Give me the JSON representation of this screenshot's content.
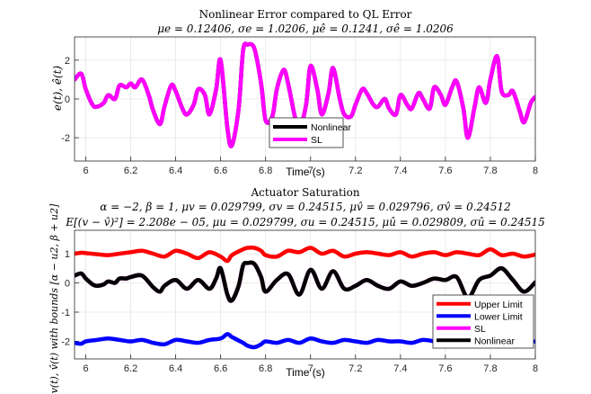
{
  "chart_data": [
    {
      "type": "line",
      "title": "Nonlinear Error compared to QL Error",
      "subtitle": "μe = 0.12406, σe = 1.0206, μê = 0.1241, σê = 1.0206",
      "xlabel": "Time (s)",
      "ylabel": "e(t), ê(t)",
      "xlim": [
        5.95,
        8.0
      ],
      "ylim": [
        -3.2,
        3.2
      ],
      "xticks": [
        "6",
        "6.2",
        "6.4",
        "6.6",
        "6.8",
        "7",
        "7.2",
        "7.4",
        "7.6",
        "7.8",
        "8"
      ],
      "yticks": [
        "-2",
        "0",
        "2"
      ],
      "grid": true,
      "legend": {
        "placement": "bottom-center",
        "entries": [
          "Nonlinear",
          "SL"
        ]
      },
      "series": [
        {
          "name": "Nonlinear",
          "color": "#000000",
          "x": [
            5.95,
            5.98,
            6.0,
            6.03,
            6.05,
            6.08,
            6.1,
            6.13,
            6.15,
            6.18,
            6.2,
            6.22,
            6.25,
            6.28,
            6.3,
            6.33,
            6.35,
            6.38,
            6.4,
            6.43,
            6.45,
            6.48,
            6.5,
            6.53,
            6.55,
            6.58,
            6.6,
            6.63,
            6.65,
            6.68,
            6.7,
            6.72,
            6.75,
            6.78,
            6.8,
            6.83,
            6.85,
            6.88,
            6.9,
            6.93,
            6.95,
            6.98,
            7.0,
            7.03,
            7.05,
            7.08,
            7.1,
            7.13,
            7.15,
            7.18,
            7.2,
            7.23,
            7.25,
            7.28,
            7.3,
            7.33,
            7.35,
            7.38,
            7.4,
            7.43,
            7.45,
            7.48,
            7.5,
            7.53,
            7.55,
            7.58,
            7.6,
            7.63,
            7.65,
            7.68,
            7.7,
            7.73,
            7.75,
            7.78,
            7.8,
            7.83,
            7.85,
            7.88,
            7.9,
            7.93,
            7.95,
            7.98,
            8.0
          ],
          "y": [
            1.0,
            1.3,
            0.5,
            -0.3,
            -0.4,
            -0.2,
            0.2,
            0.0,
            0.7,
            0.6,
            0.8,
            0.6,
            1.0,
            0.2,
            -0.6,
            -1.3,
            -0.4,
            0.7,
            0.4,
            -0.5,
            -0.8,
            -0.3,
            0.5,
            0.2,
            -0.8,
            0.5,
            2.0,
            -1.5,
            -2.4,
            -0.5,
            2.5,
            2.8,
            2.6,
            0.8,
            -1.1,
            -0.9,
            0.5,
            1.5,
            0.8,
            -0.9,
            -1.6,
            -0.3,
            1.7,
            0.5,
            -0.8,
            0.3,
            1.6,
            0.0,
            -0.8,
            -0.9,
            -0.3,
            0.5,
            0.3,
            -0.3,
            -0.4,
            0.0,
            -0.5,
            -0.8,
            0.2,
            -0.3,
            -0.5,
            0.3,
            0.0,
            -0.5,
            0.6,
            0.2,
            -0.3,
            0.6,
            0.9,
            -0.5,
            -2.0,
            -0.4,
            0.6,
            -0.2,
            1.0,
            2.2,
            0.4,
            0.2,
            0.4,
            -0.6,
            -1.2,
            -0.2,
            0.1
          ]
        },
        {
          "name": "SL",
          "color": "#ff00ff",
          "x": [
            5.95,
            5.98,
            6.0,
            6.03,
            6.05,
            6.08,
            6.1,
            6.13,
            6.15,
            6.18,
            6.2,
            6.22,
            6.25,
            6.28,
            6.3,
            6.33,
            6.35,
            6.38,
            6.4,
            6.43,
            6.45,
            6.48,
            6.5,
            6.53,
            6.55,
            6.58,
            6.6,
            6.63,
            6.65,
            6.68,
            6.7,
            6.72,
            6.75,
            6.78,
            6.8,
            6.83,
            6.85,
            6.88,
            6.9,
            6.93,
            6.95,
            6.98,
            7.0,
            7.03,
            7.05,
            7.08,
            7.1,
            7.13,
            7.15,
            7.18,
            7.2,
            7.23,
            7.25,
            7.28,
            7.3,
            7.33,
            7.35,
            7.38,
            7.4,
            7.43,
            7.45,
            7.48,
            7.5,
            7.53,
            7.55,
            7.58,
            7.6,
            7.63,
            7.65,
            7.68,
            7.7,
            7.73,
            7.75,
            7.78,
            7.8,
            7.83,
            7.85,
            7.88,
            7.9,
            7.93,
            7.95,
            7.98,
            8.0
          ],
          "y": [
            1.0,
            1.3,
            0.5,
            -0.3,
            -0.4,
            -0.2,
            0.2,
            0.0,
            0.7,
            0.6,
            0.8,
            0.6,
            1.0,
            0.2,
            -0.6,
            -1.3,
            -0.4,
            0.7,
            0.4,
            -0.5,
            -0.8,
            -0.3,
            0.5,
            0.2,
            -0.8,
            0.5,
            2.0,
            -1.5,
            -2.4,
            -0.5,
            2.5,
            2.8,
            2.6,
            0.8,
            -1.1,
            -0.9,
            0.5,
            1.5,
            0.8,
            -0.9,
            -1.6,
            -0.3,
            1.7,
            0.5,
            -0.8,
            0.3,
            1.6,
            0.0,
            -0.8,
            -0.9,
            -0.3,
            0.5,
            0.3,
            -0.3,
            -0.4,
            0.0,
            -0.5,
            -0.8,
            0.2,
            -0.3,
            -0.5,
            0.3,
            0.0,
            -0.5,
            0.6,
            0.2,
            -0.3,
            0.6,
            0.9,
            -0.5,
            -2.0,
            -0.4,
            0.6,
            -0.2,
            1.0,
            2.2,
            0.4,
            0.2,
            0.4,
            -0.6,
            -1.2,
            -0.2,
            0.1
          ]
        }
      ]
    },
    {
      "type": "line",
      "title": "Actuator Saturation",
      "subtitle": "α = −2, β = 1, μv = 0.029799, σv = 0.24515, μv̂ = 0.029796, σv̂ = 0.24512",
      "subtitle2": "E[(v − v̂)²] = 2.208e − 05, μu = 0.029799, σu = 0.24515, μû = 0.029809, σû = 0.24515",
      "xlabel": "Time (s)",
      "ylabel": "v(t), v̂(t) with bounds [α − u2, β + u2]",
      "xlim": [
        5.95,
        8.0
      ],
      "ylim": [
        -2.6,
        1.8
      ],
      "xticks": [
        "6",
        "6.2",
        "6.4",
        "6.6",
        "6.8",
        "7",
        "7.2",
        "7.4",
        "7.6",
        "7.8",
        "8"
      ],
      "yticks": [
        "-2",
        "-1",
        "0",
        "1"
      ],
      "grid": true,
      "legend": {
        "placement": "bottom-right",
        "entries": [
          "Upper Limit",
          "Lower Limit",
          "SL",
          "Nonlinear"
        ]
      },
      "series": [
        {
          "name": "Upper Limit",
          "color": "#ff0000",
          "x": [
            5.95,
            5.98,
            6.0,
            6.05,
            6.1,
            6.15,
            6.2,
            6.25,
            6.3,
            6.35,
            6.4,
            6.45,
            6.5,
            6.55,
            6.6,
            6.63,
            6.65,
            6.7,
            6.72,
            6.75,
            6.78,
            6.8,
            6.85,
            6.9,
            6.95,
            7.0,
            7.05,
            7.1,
            7.15,
            7.2,
            7.25,
            7.3,
            7.35,
            7.4,
            7.45,
            7.5,
            7.55,
            7.6,
            7.65,
            7.7,
            7.75,
            7.8,
            7.85,
            7.9,
            7.95,
            8.0
          ],
          "y": [
            1.0,
            1.03,
            1.02,
            0.98,
            0.95,
            1.0,
            1.05,
            1.1,
            1.0,
            0.9,
            1.1,
            1.0,
            0.85,
            1.05,
            0.9,
            0.75,
            0.95,
            1.15,
            1.2,
            1.2,
            1.1,
            0.95,
            0.9,
            1.1,
            1.05,
            1.2,
            1.0,
            1.1,
            0.9,
            1.0,
            1.05,
            1.0,
            0.95,
            1.05,
            0.9,
            1.0,
            1.05,
            0.95,
            1.05,
            1.0,
            0.95,
            1.15,
            0.95,
            1.0,
            0.9,
            0.97
          ]
        },
        {
          "name": "Lower Limit",
          "color": "#0000ff",
          "x": [
            5.95,
            5.98,
            6.0,
            6.05,
            6.1,
            6.15,
            6.2,
            6.25,
            6.3,
            6.35,
            6.4,
            6.45,
            6.5,
            6.55,
            6.6,
            6.63,
            6.65,
            6.7,
            6.72,
            6.75,
            6.78,
            6.8,
            6.85,
            6.9,
            6.95,
            7.0,
            7.05,
            7.1,
            7.15,
            7.2,
            7.25,
            7.3,
            7.35,
            7.4,
            7.45,
            7.5,
            7.55,
            7.6,
            7.65,
            7.7,
            7.75,
            7.8,
            7.85,
            7.9,
            7.95,
            8.0
          ],
          "y": [
            -2.05,
            -2.08,
            -2.0,
            -1.95,
            -1.9,
            -1.95,
            -2.0,
            -1.95,
            -2.05,
            -2.1,
            -1.95,
            -2.0,
            -2.05,
            -1.95,
            -1.9,
            -1.75,
            -1.85,
            -2.05,
            -2.15,
            -2.2,
            -2.1,
            -2.0,
            -2.05,
            -1.95,
            -2.05,
            -1.9,
            -2.0,
            -2.05,
            -1.95,
            -2.0,
            -2.05,
            -1.95,
            -2.0,
            -2.0,
            -2.05,
            -1.95,
            -2.0,
            -2.1,
            -1.95,
            -2.05,
            -2.0,
            -1.85,
            -2.0,
            -1.95,
            -2.05,
            -2.0
          ]
        },
        {
          "name": "SL",
          "color": "#ff00ff",
          "x": [
            5.95,
            5.98,
            6.0,
            6.03,
            6.05,
            6.08,
            6.1,
            6.13,
            6.15,
            6.18,
            6.2,
            6.25,
            6.3,
            6.33,
            6.35,
            6.4,
            6.45,
            6.5,
            6.55,
            6.58,
            6.6,
            6.63,
            6.65,
            6.68,
            6.7,
            6.72,
            6.75,
            6.78,
            6.8,
            6.85,
            6.9,
            6.95,
            7.0,
            7.05,
            7.1,
            7.15,
            7.2,
            7.25,
            7.3,
            7.35,
            7.4,
            7.45,
            7.5,
            7.55,
            7.6,
            7.65,
            7.7,
            7.75,
            7.8,
            7.85,
            7.9,
            7.95,
            8.0
          ],
          "y": [
            0.25,
            0.32,
            0.15,
            -0.05,
            -0.1,
            -0.05,
            0.05,
            0.0,
            0.15,
            0.15,
            0.2,
            0.25,
            -0.15,
            -0.3,
            -0.1,
            0.1,
            -0.2,
            0.1,
            -0.2,
            0.15,
            0.5,
            -0.4,
            -0.6,
            -0.1,
            0.6,
            0.68,
            0.65,
            0.2,
            -0.3,
            0.1,
            0.3,
            -0.4,
            0.45,
            -0.2,
            0.4,
            -0.2,
            -0.1,
            0.1,
            -0.1,
            -0.2,
            0.05,
            -0.1,
            0.0,
            0.15,
            0.1,
            0.2,
            -0.5,
            0.1,
            0.25,
            0.5,
            0.1,
            -0.3,
            0.02
          ]
        },
        {
          "name": "Nonlinear",
          "color": "#000000",
          "x": [
            5.95,
            5.98,
            6.0,
            6.03,
            6.05,
            6.08,
            6.1,
            6.13,
            6.15,
            6.18,
            6.2,
            6.25,
            6.3,
            6.33,
            6.35,
            6.4,
            6.45,
            6.5,
            6.55,
            6.58,
            6.6,
            6.63,
            6.65,
            6.68,
            6.7,
            6.72,
            6.75,
            6.78,
            6.8,
            6.85,
            6.9,
            6.95,
            7.0,
            7.05,
            7.1,
            7.15,
            7.2,
            7.25,
            7.3,
            7.35,
            7.4,
            7.45,
            7.5,
            7.55,
            7.6,
            7.65,
            7.7,
            7.75,
            7.8,
            7.85,
            7.9,
            7.95,
            8.0
          ],
          "y": [
            0.25,
            0.32,
            0.15,
            -0.05,
            -0.1,
            -0.05,
            0.05,
            0.0,
            0.15,
            0.15,
            0.2,
            0.25,
            -0.15,
            -0.3,
            -0.1,
            0.1,
            -0.2,
            0.1,
            -0.2,
            0.15,
            0.5,
            -0.4,
            -0.6,
            -0.1,
            0.6,
            0.68,
            0.65,
            0.2,
            -0.3,
            0.1,
            0.3,
            -0.4,
            0.45,
            -0.2,
            0.4,
            -0.2,
            -0.1,
            0.1,
            -0.1,
            -0.2,
            0.05,
            -0.1,
            0.0,
            0.15,
            0.1,
            0.2,
            -0.5,
            0.1,
            0.25,
            0.5,
            0.1,
            -0.3,
            0.02
          ]
        }
      ]
    }
  ]
}
